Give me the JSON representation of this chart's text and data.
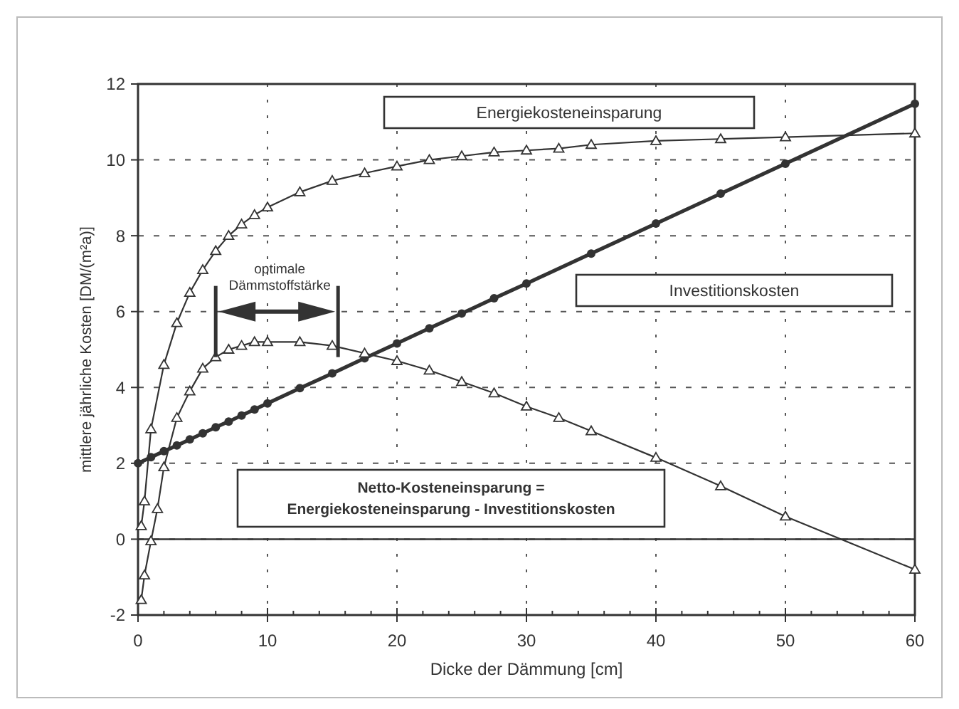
{
  "chart_data": {
    "type": "line",
    "xlabel": "Dicke der Dämmung [cm]",
    "ylabel": "mittlere jährliche Kosten [DM/(m²a)]",
    "xlim": [
      0,
      60
    ],
    "ylim": [
      -2,
      12
    ],
    "xticks": [
      0,
      10,
      20,
      30,
      40,
      50,
      60
    ],
    "yticks": [
      -2,
      0,
      2,
      4,
      6,
      8,
      10,
      12
    ],
    "grid": true,
    "legend": false,
    "ref_lines": [
      {
        "axis": "y",
        "value": 0
      }
    ],
    "annotations": [
      {
        "text": "optimale\nDämmstoffstärke",
        "x": 6,
        "y": 4.8
      }
    ],
    "series": [
      {
        "name": "Energiekosteneinsparung",
        "color": "#333333",
        "marker": "triangle",
        "x": [
          0.25,
          0.5,
          1,
          2,
          3,
          4,
          5,
          6,
          7,
          8,
          9,
          10,
          12.5,
          15,
          17.5,
          20,
          22.5,
          25,
          27.5,
          30,
          32.5,
          35,
          40,
          45,
          50,
          60
        ],
        "values": [
          0.35,
          1.0,
          2.9,
          4.6,
          5.7,
          6.5,
          7.1,
          7.6,
          8.0,
          8.3,
          8.55,
          8.75,
          9.15,
          9.45,
          9.65,
          9.83,
          10.0,
          10.1,
          10.2,
          10.25,
          10.3,
          10.4,
          10.5,
          10.55,
          10.6,
          10.7
        ]
      },
      {
        "name": "Investitionskosten",
        "color": "#333333",
        "marker": "circle",
        "x": [
          0,
          1,
          2,
          3,
          4,
          5,
          6,
          7,
          8,
          9,
          10,
          12.5,
          15,
          17.5,
          20,
          22.5,
          25,
          27.5,
          30,
          35,
          40,
          45,
          50,
          60
        ],
        "values": [
          2,
          2.16,
          2.32,
          2.47,
          2.63,
          2.79,
          2.95,
          3.1,
          3.26,
          3.42,
          3.58,
          3.98,
          4.37,
          4.77,
          5.16,
          5.56,
          5.95,
          6.35,
          6.74,
          7.53,
          8.32,
          9.11,
          9.9,
          11.48
        ]
      },
      {
        "name": "Netto-Kosteneinsparung = Energiekosteneinsparung - Investitionskosten",
        "color": "#333333",
        "marker": "triangle",
        "x": [
          0.25,
          0.5,
          1,
          1.5,
          2,
          3,
          4,
          5,
          6,
          7,
          8,
          9,
          10,
          12.5,
          15,
          17.5,
          20,
          22.5,
          25,
          27.5,
          30,
          32.5,
          35,
          40,
          45,
          50,
          60
        ],
        "values": [
          -1.6,
          -0.95,
          -0.05,
          0.8,
          1.9,
          3.2,
          3.9,
          4.5,
          4.8,
          5.0,
          5.1,
          5.2,
          5.2,
          5.2,
          5.1,
          4.9,
          4.7,
          4.45,
          4.15,
          3.85,
          3.5,
          3.2,
          2.85,
          2.15,
          1.4,
          0.6,
          -0.8
        ]
      }
    ]
  }
}
